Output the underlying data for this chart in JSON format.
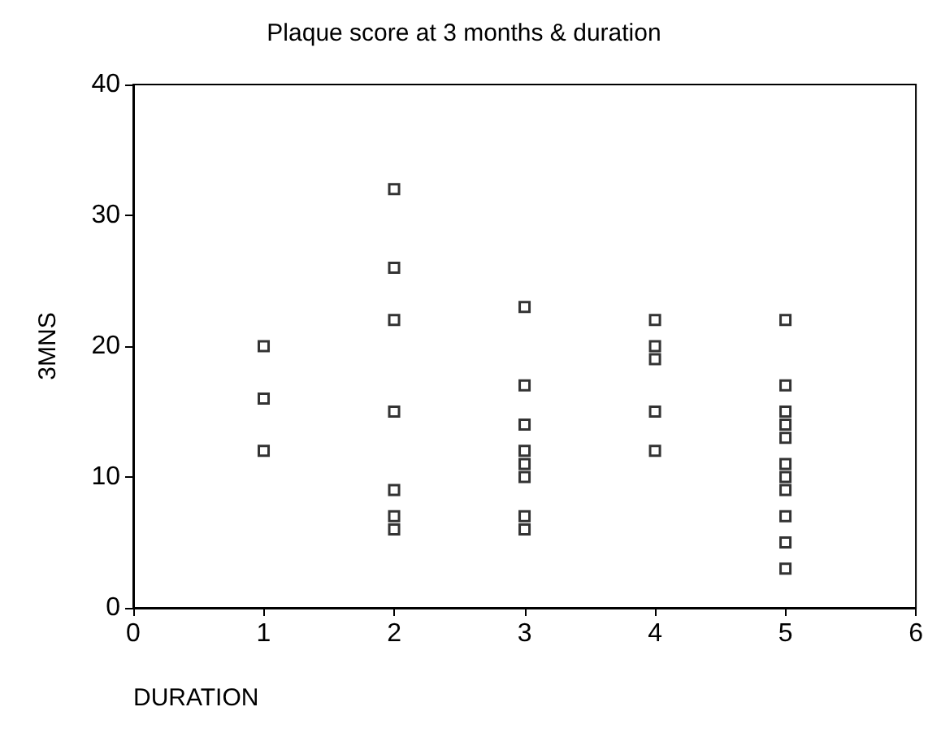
{
  "chart_data": {
    "type": "scatter",
    "title": "Plaque score at 3 months & duration",
    "xlabel": "DURATION",
    "ylabel": "3MNS",
    "x": [
      1,
      1,
      1,
      2,
      2,
      2,
      2,
      2,
      2,
      2,
      3,
      3,
      3,
      3,
      3,
      3,
      3,
      3,
      4,
      4,
      4,
      4,
      4,
      5,
      5,
      5,
      5,
      5,
      5,
      5,
      5,
      5,
      5,
      5
    ],
    "values": [
      20,
      16,
      12,
      32,
      26,
      22,
      15,
      9,
      7,
      6,
      23,
      17,
      14,
      12,
      11,
      10,
      7,
      6,
      22,
      20,
      19,
      15,
      12,
      22,
      17,
      15,
      14,
      13,
      11,
      10,
      9,
      7,
      5,
      3
    ],
    "color": "#000000",
    "marker": "square",
    "xlim": [
      0,
      6
    ],
    "xticks": [
      0,
      1,
      2,
      3,
      4,
      5,
      6
    ],
    "ylim": [
      0,
      40
    ],
    "yticks": [
      0,
      10,
      20,
      30,
      40
    ],
    "grid": false
  }
}
